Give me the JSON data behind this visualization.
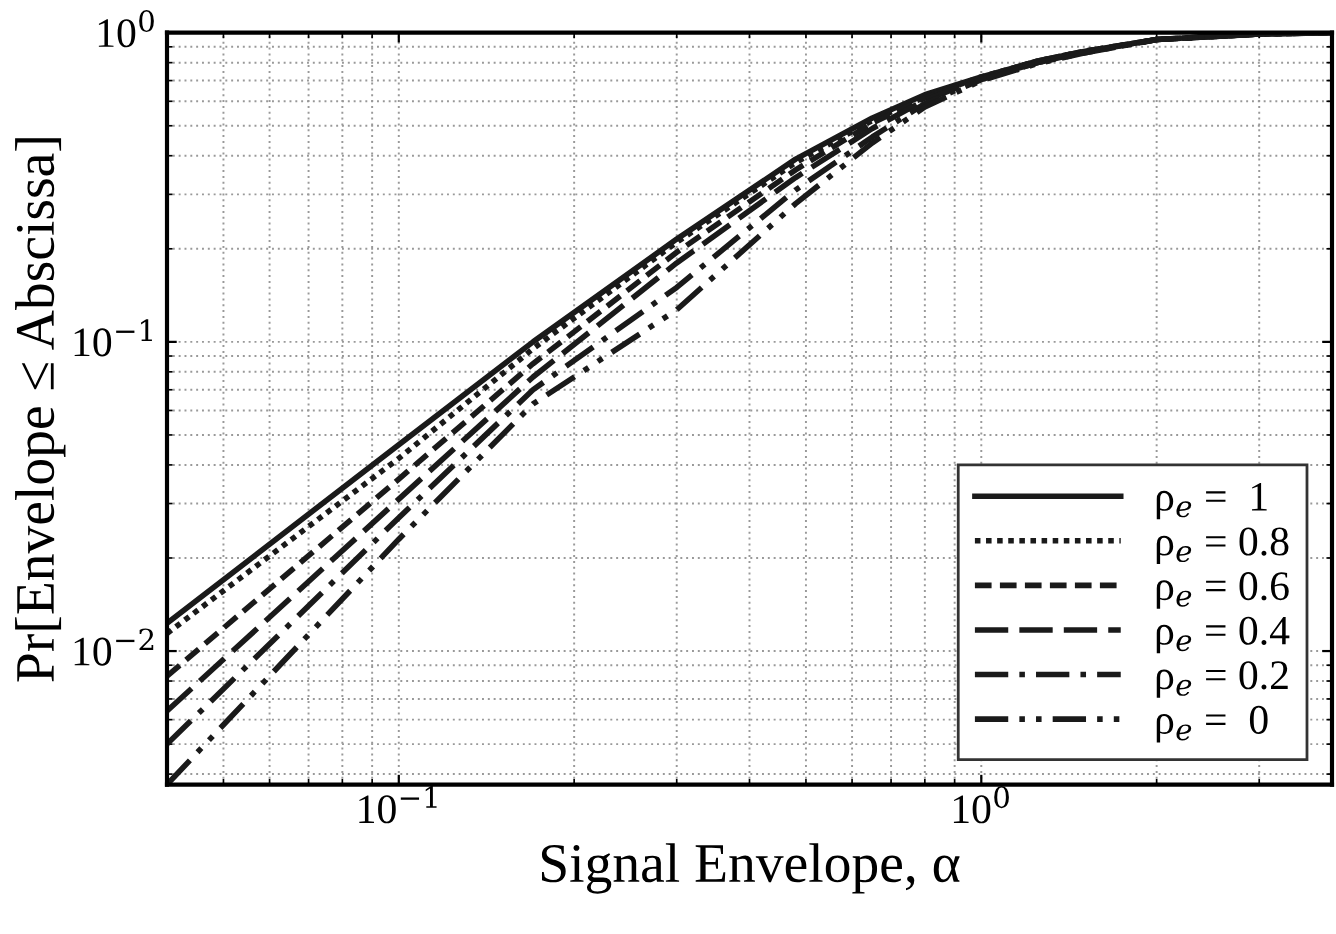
{
  "chart_data": {
    "type": "line",
    "xlabel": "Signal Envelope, α",
    "ylabel": "Pr[Envelope ≤ Abscissa]",
    "log": "xy",
    "grid": true,
    "legend": "bottom right",
    "marker": "none",
    "xlim": [
      0.04,
      4
    ],
    "ylim": [
      0.0037,
      1
    ],
    "xticks": [
      {
        "value": 0.1,
        "label": "10$^{−1}$"
      },
      {
        "value": 1,
        "label": "10$^{0}$"
      }
    ],
    "yticks": [
      {
        "value": 0.01,
        "label": "10$^{−2}$"
      },
      {
        "value": 0.1,
        "label": "10$^{−1}$"
      },
      {
        "value": 1,
        "label": "10$^{0}$"
      }
    ],
    "x": [
      0.04,
      0.1,
      0.17,
      0.3,
      0.48,
      0.65,
      0.8,
      1,
      1.25,
      1.5,
      2,
      3,
      4
    ],
    "series": [
      {
        "name": "ρ$_{e}$ =  1",
        "color": "#1a1a1a",
        "line_style": "solid",
        "values": [
          0.0123,
          0.0465,
          0.1,
          0.215,
          0.39,
          0.53,
          0.63,
          0.72,
          0.81,
          0.87,
          0.95,
          0.99,
          1.0
        ]
      },
      {
        "name": "ρ$_{e}$ = 0.8",
        "color": "#1a1a1a",
        "line_style": "dotted",
        "values": [
          0.0114,
          0.042,
          0.095,
          0.21,
          0.38,
          0.52,
          0.62,
          0.72,
          0.81,
          0.87,
          0.95,
          0.99,
          1.0
        ]
      },
      {
        "name": "ρ$_{e}$ = 0.6",
        "color": "#1a1a1a",
        "line_style": "dashed",
        "values": [
          0.0083,
          0.036,
          0.085,
          0.195,
          0.36,
          0.51,
          0.615,
          0.715,
          0.81,
          0.87,
          0.95,
          0.99,
          1.0
        ]
      },
      {
        "name": "ρ$_{e}$ = 0.4",
        "color": "#1a1a1a",
        "line_style": "longdash",
        "values": [
          0.0064,
          0.031,
          0.077,
          0.18,
          0.34,
          0.49,
          0.605,
          0.71,
          0.8,
          0.865,
          0.95,
          0.99,
          1.0
        ]
      },
      {
        "name": "ρ$_{e}$ = 0.2",
        "color": "#1a1a1a",
        "line_style": "dashdot",
        "values": [
          0.005,
          0.027,
          0.07,
          0.15,
          0.31,
          0.46,
          0.59,
          0.705,
          0.8,
          0.86,
          0.95,
          0.99,
          1.0
        ]
      },
      {
        "name": "ρ$_{e}$ =  0",
        "color": "#1a1a1a",
        "line_style": "dashdotdot",
        "values": [
          0.0037,
          0.023,
          0.063,
          0.127,
          0.28,
          0.44,
          0.575,
          0.7,
          0.795,
          0.86,
          0.95,
          0.99,
          1.0
        ]
      }
    ]
  }
}
